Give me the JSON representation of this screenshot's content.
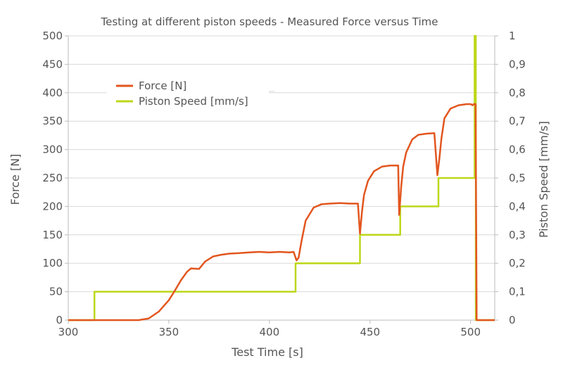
{
  "chart_data": {
    "type": "line",
    "title": "Testing at different piston speeds - Measured Force versus Time",
    "xlabel": "Test Time [s]",
    "ylabel": "Force [N]",
    "y2label": "Piston Speed [mm/s]",
    "xlim": [
      300,
      512
    ],
    "ylim": [
      0,
      500
    ],
    "y2lim": [
      0,
      1
    ],
    "xticks": [
      "300",
      "350",
      "400",
      "450",
      "500"
    ],
    "yticks": [
      "0",
      "50",
      "100",
      "150",
      "200",
      "250",
      "300",
      "350",
      "400",
      "450",
      "500"
    ],
    "y2ticks": [
      "0",
      "0,1",
      "0,2",
      "0,3",
      "0,4",
      "0,5",
      "0,6",
      "0,7",
      "0,8",
      "0,9",
      "1"
    ],
    "grid": "horizontal",
    "legend_position": "top-left",
    "series": [
      {
        "name": "Force [N]",
        "axis": "left",
        "color": "#e2561f",
        "x": [
          300,
          335,
          340,
          345,
          350,
          353,
          356,
          359,
          361,
          365,
          368,
          372,
          376,
          380,
          385,
          390,
          395,
          400,
          405,
          410,
          412,
          413.5,
          414.5,
          416,
          418,
          422,
          426,
          430,
          435,
          440,
          444,
          445,
          446,
          447,
          449,
          452,
          456,
          460,
          464,
          464.5,
          465.5,
          466.5,
          468,
          471,
          474,
          478,
          482,
          483.5,
          484.5,
          485.5,
          487,
          490,
          494,
          498,
          500,
          501,
          501.5,
          502.5,
          503,
          505,
          510,
          512
        ],
        "y": [
          0,
          0,
          3,
          15,
          35,
          52,
          70,
          85,
          91,
          90,
          103,
          112,
          115,
          117,
          118,
          119,
          120,
          119,
          120,
          119,
          120,
          105,
          110,
          140,
          175,
          198,
          204,
          205,
          206,
          205,
          205,
          152,
          190,
          220,
          245,
          262,
          270,
          272,
          272,
          185,
          235,
          270,
          295,
          318,
          326,
          328,
          329,
          255,
          285,
          320,
          355,
          372,
          378,
          380,
          380,
          378,
          380,
          380,
          0,
          0,
          0,
          0
        ]
      },
      {
        "name": "Piston Speed [mm/s]",
        "axis": "right",
        "color": "#bdd71a",
        "x": [
          300,
          313,
          313,
          413,
          413,
          445,
          445,
          465,
          465,
          484,
          484,
          502,
          502,
          502.6,
          502.6,
          512
        ],
        "y": [
          0,
          0,
          0.1,
          0.1,
          0.2,
          0.2,
          0.3,
          0.3,
          0.4,
          0.4,
          0.5,
          0.5,
          1.0,
          1.0,
          0,
          0
        ]
      }
    ]
  }
}
